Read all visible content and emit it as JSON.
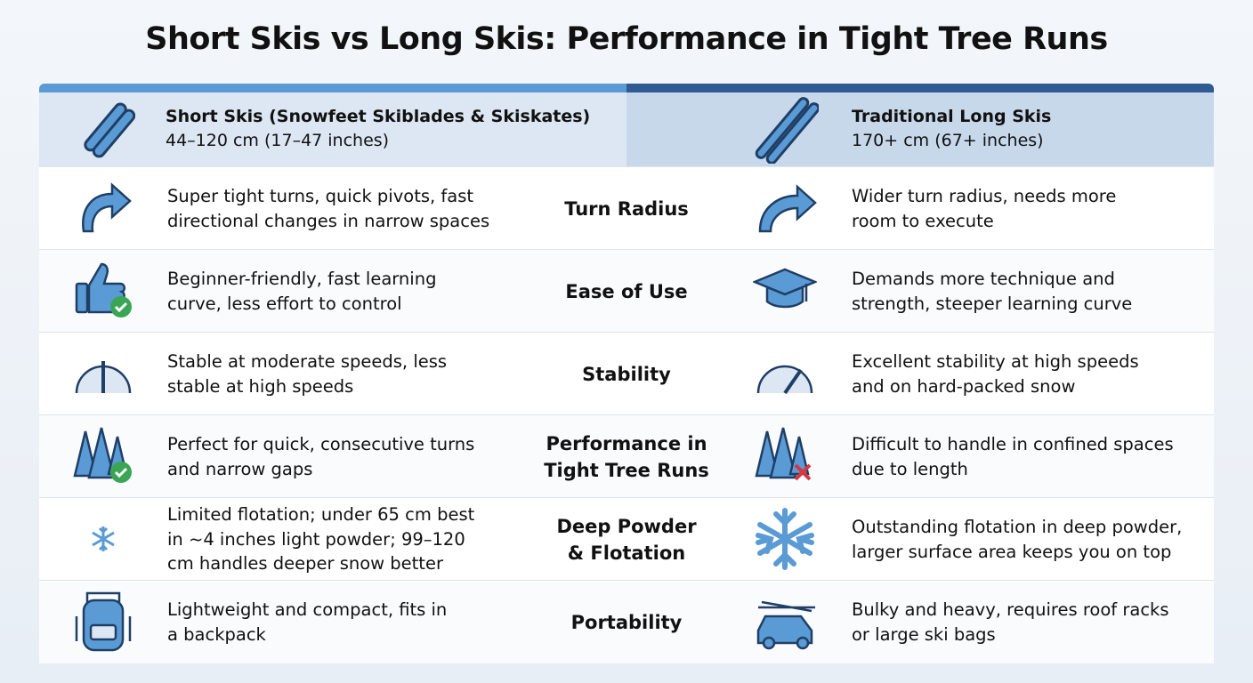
{
  "title": "Short Skis vs Long Skis: Performance in Tight Tree Runs",
  "columns": {
    "short": {
      "name": "Short Skis (Snowfeet Skiblades & Skiskates)",
      "length": "44–120 cm (17–47 inches)"
    },
    "long": {
      "name": "Traditional Long Skis",
      "length": "170+ cm (67+ inches)"
    }
  },
  "rows": [
    {
      "label": [
        "Turn Radius"
      ],
      "short": [
        "Super tight turns, quick pivots, fast",
        "directional changes in narrow spaces"
      ],
      "long": [
        "Wider turn radius, needs more",
        "room to execute"
      ]
    },
    {
      "label": [
        "Ease of Use"
      ],
      "short": [
        "Beginner-friendly, fast learning",
        "curve, less effort to control"
      ],
      "long": [
        "Demands more technique and",
        "strength, steeper learning curve"
      ]
    },
    {
      "label": [
        "Stability"
      ],
      "short": [
        "Stable at moderate speeds, less",
        "stable at high speeds"
      ],
      "long": [
        "Excellent stability at high speeds",
        "and on hard-packed snow"
      ]
    },
    {
      "label": [
        "Performance in",
        "Tight Tree Runs"
      ],
      "short": [
        "Perfect for quick, consecutive turns",
        "and narrow gaps"
      ],
      "long": [
        "Difficult to handle in confined spaces",
        "due to length"
      ]
    },
    {
      "label": [
        "Deep Powder",
        "& Flotation"
      ],
      "short": [
        "Limited flotation; under 65 cm best",
        "in ~4 inches light powder; 99–120",
        "cm handles deeper snow better"
      ],
      "long": [
        "Outstanding flotation in deep powder,",
        "larger surface area keeps you on top"
      ]
    },
    {
      "label": [
        "Portability"
      ],
      "short": [
        "Lightweight and compact, fits in",
        "a backpack"
      ],
      "long": [
        "Bulky and heavy, requires roof racks",
        "or large ski bags"
      ]
    }
  ]
}
